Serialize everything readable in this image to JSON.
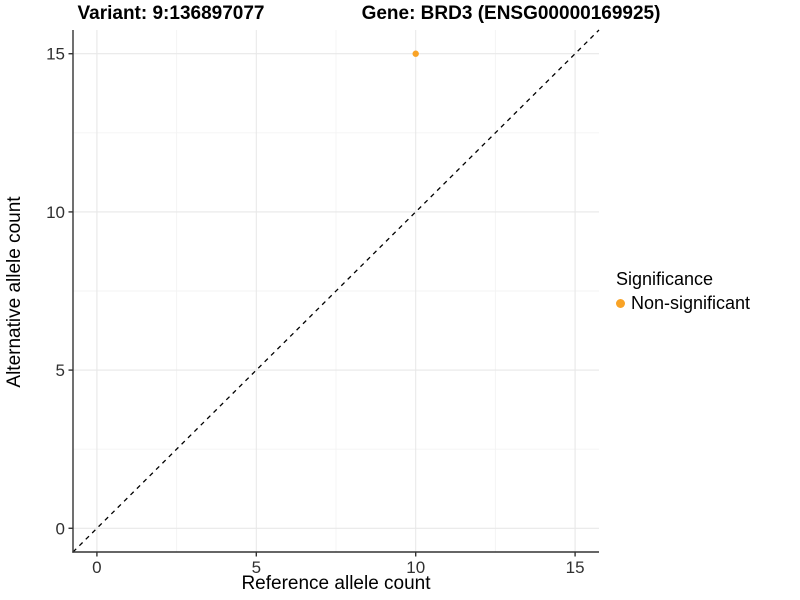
{
  "titles": {
    "variant": "Variant: 9:136897077",
    "gene": "Gene: BRD3 (ENSG00000169925)"
  },
  "chart_data": {
    "type": "scatter",
    "title_left": "Variant: 9:136897077",
    "title_right": "Gene: BRD3 (ENSG00000169925)",
    "xlabel": "Reference allele count",
    "ylabel": "Alternative allele count",
    "xlim": [
      -0.75,
      15.75
    ],
    "ylim": [
      -0.75,
      15.75
    ],
    "xticks": [
      0,
      5,
      10,
      15
    ],
    "yticks": [
      0,
      5,
      10,
      15
    ],
    "minor_xticks": [
      2.5,
      7.5,
      12.5
    ],
    "minor_yticks": [
      2.5,
      7.5,
      12.5
    ],
    "grid": true,
    "identity_line": {
      "slope": 1,
      "intercept": 0,
      "style": "dashed",
      "color": "#000000"
    },
    "series": [
      {
        "name": "Non-significant",
        "color": "#F9A326",
        "points": [
          [
            10,
            15
          ]
        ]
      }
    ],
    "legend": {
      "title": "Significance",
      "position": "right",
      "entries": [
        {
          "label": "Non-significant",
          "color": "#F9A326"
        }
      ]
    }
  },
  "colors": {
    "background": "#FFFFFF",
    "grid_major": "#E8E8E8",
    "grid_minor": "#F3F3F3",
    "axis": "#333333",
    "tick_label": "#303030",
    "point": "#F9A326",
    "dashed_line": "#000000"
  }
}
